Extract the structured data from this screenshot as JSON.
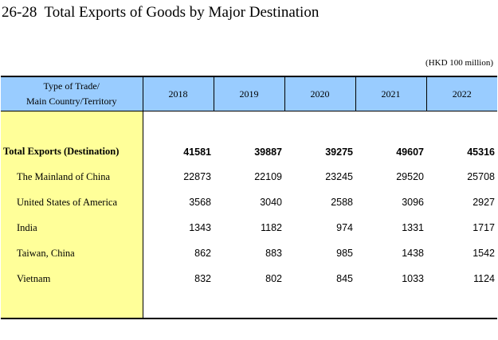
{
  "title": "26-28  Total Exports of Goods by Major Destination",
  "unit": "(HKD 100 million)",
  "header": {
    "label_line1": "Type of Trade/",
    "label_line2": "Main Country/Territory",
    "years": [
      "2018",
      "2019",
      "2020",
      "2021",
      "2022"
    ]
  },
  "rows": [
    {
      "label": "Total Exports (Destination)",
      "values": [
        "41581",
        "39887",
        "39275",
        "49607",
        "45316"
      ]
    },
    {
      "label": "The Mainland of China",
      "values": [
        "22873",
        "22109",
        "23245",
        "29520",
        "25708"
      ]
    },
    {
      "label": "United States of America",
      "values": [
        "3568",
        "3040",
        "2588",
        "3096",
        "2927"
      ]
    },
    {
      "label": "India",
      "values": [
        "1343",
        "1182",
        "974",
        "1331",
        "1717"
      ]
    },
    {
      "label": "Taiwan, China",
      "values": [
        "862",
        "883",
        "985",
        "1438",
        "1542"
      ]
    },
    {
      "label": "Vietnam",
      "values": [
        "832",
        "802",
        "845",
        "1033",
        "1124"
      ]
    }
  ],
  "colors": {
    "header_bg": "#99ccff",
    "label_column_bg": "#ffff99"
  }
}
